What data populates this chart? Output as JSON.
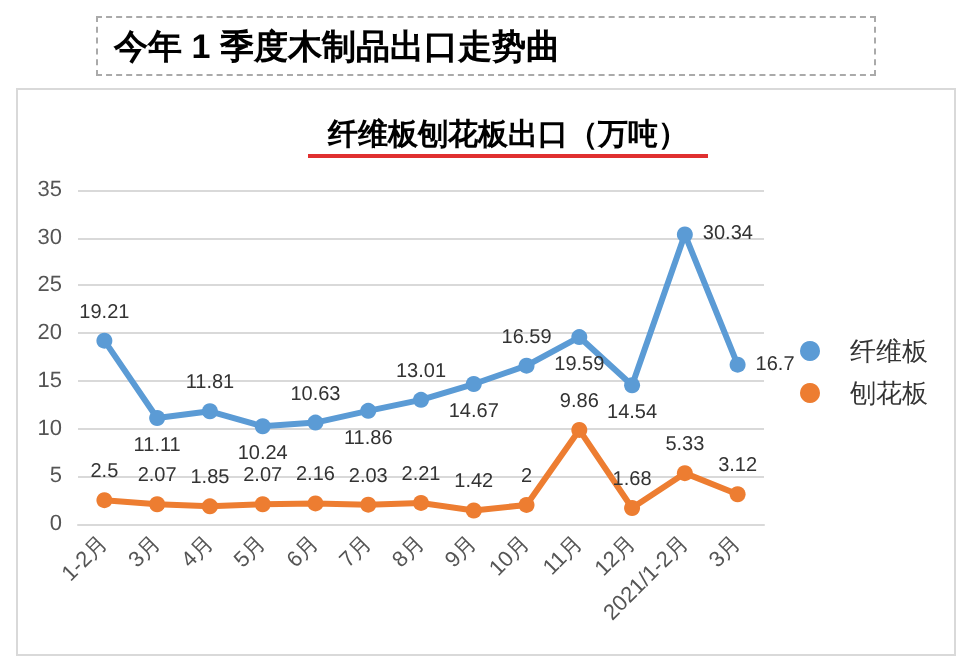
{
  "chart_data": {
    "type": "line",
    "title": "今年 1 季度木制品出口走势曲",
    "subtitle": "纤维板刨花板出口（万吨）",
    "categories": [
      "1-2月",
      "3月",
      "4月",
      "5月",
      "6月",
      "7月",
      "8月",
      "9月",
      "10月",
      "11月",
      "12月",
      "2021/1-2月",
      "3月"
    ],
    "series": [
      {
        "name": "纤维板",
        "color": "#5b9bd5",
        "values": [
          19.21,
          11.11,
          11.81,
          10.24,
          10.63,
          11.86,
          13.01,
          14.67,
          16.59,
          19.59,
          14.54,
          30.34,
          16.7
        ]
      },
      {
        "name": "刨花板",
        "color": "#ed7d31",
        "values": [
          2.5,
          2.07,
          1.85,
          2.07,
          2.16,
          2.03,
          2.21,
          1.42,
          2,
          9.86,
          1.68,
          5.33,
          3.12
        ]
      }
    ],
    "ylim": [
      0,
      35
    ],
    "yticks": [
      0,
      5,
      10,
      15,
      20,
      25,
      30,
      35
    ],
    "grid": "y",
    "legend": "right",
    "marker": "circle",
    "line_style": "solid",
    "data_labels": true
  }
}
